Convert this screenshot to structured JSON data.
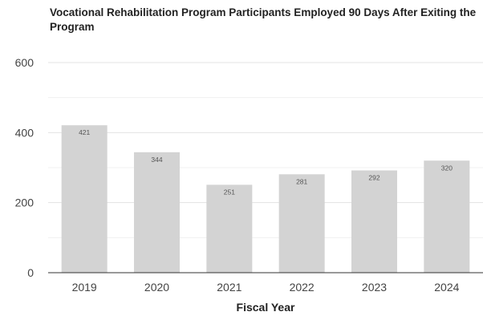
{
  "chart_data": {
    "type": "bar",
    "title": "Vocational Rehabilitation Program Participants Employed 90 Days After Exiting the Program",
    "xlabel": "Fiscal Year",
    "ylabel": "",
    "categories": [
      "2019",
      "2020",
      "2021",
      "2022",
      "2023",
      "2024"
    ],
    "values": [
      421,
      344,
      251,
      281,
      292,
      320
    ],
    "data_labels": [
      "421",
      "344",
      "251",
      "281",
      "292",
      "320"
    ],
    "ylim": [
      0,
      600
    ],
    "y_ticks": [
      "0",
      "200",
      "400",
      "600"
    ],
    "grid": true,
    "legend": "none",
    "colors": {
      "bar": "#d3d3d3",
      "grid": "#e3e3e3",
      "minor_grid": "#f0f0f0",
      "axis": "#333333"
    }
  }
}
